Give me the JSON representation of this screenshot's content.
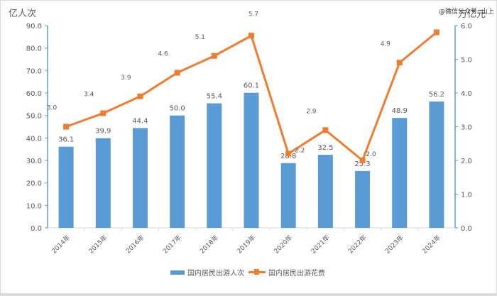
{
  "chart": {
    "left_unit": "亿人次",
    "right_unit": "万亿元",
    "watermark": "@微信公众号: 山上",
    "colors": {
      "bar": "#5b9bd5",
      "line": "#ed7d31",
      "axis": "#5b9bd5",
      "text": "#595959"
    },
    "legend": {
      "bar_label": "国内居民出游人次",
      "line_label": "国内居民出游花费"
    }
  },
  "chart_data": {
    "type": "bar+line",
    "title": "",
    "categories": [
      "2014年",
      "2015年",
      "2016年",
      "2017年",
      "2018年",
      "2019年",
      "2020年",
      "2021年",
      "2022年",
      "2023年",
      "2024年"
    ],
    "series": [
      {
        "name": "国内居民出游人次",
        "type": "bar",
        "axis": "left",
        "unit": "亿人次",
        "values": [
          36.1,
          39.9,
          44.4,
          50.0,
          55.4,
          60.1,
          28.8,
          32.5,
          25.3,
          48.9,
          56.2
        ],
        "labels": [
          "36.1",
          "39.9",
          "44.4",
          "50.0",
          "55.4",
          "60.1",
          "28.8",
          "32.5",
          "25.3",
          "48.9",
          "56.2"
        ]
      },
      {
        "name": "国内居民出游花费",
        "type": "line",
        "axis": "right",
        "unit": "万亿元",
        "values": [
          3.0,
          3.4,
          3.9,
          4.6,
          5.1,
          5.7,
          2.2,
          2.9,
          2.0,
          4.9,
          5.8
        ],
        "labels": [
          "3.0",
          "3.4",
          "3.9",
          "4.6",
          "5.1",
          "5.7",
          "2.2",
          "2.9",
          "2.0",
          "4.9",
          ""
        ]
      }
    ],
    "ylabel_left": "亿人次",
    "ylabel_right": "万亿元",
    "ylim_left": [
      0,
      90
    ],
    "yticks_left": [
      "0.0",
      "10.0",
      "20.0",
      "30.0",
      "40.0",
      "50.0",
      "60.0",
      "70.0",
      "80.0",
      "90.0"
    ],
    "ylim_right": [
      0,
      6
    ],
    "yticks_right": [
      "0.0",
      "1.0",
      "2.0",
      "3.0",
      "4.0",
      "5.0",
      "6.0"
    ],
    "grid": false,
    "legend_position": "bottom"
  }
}
